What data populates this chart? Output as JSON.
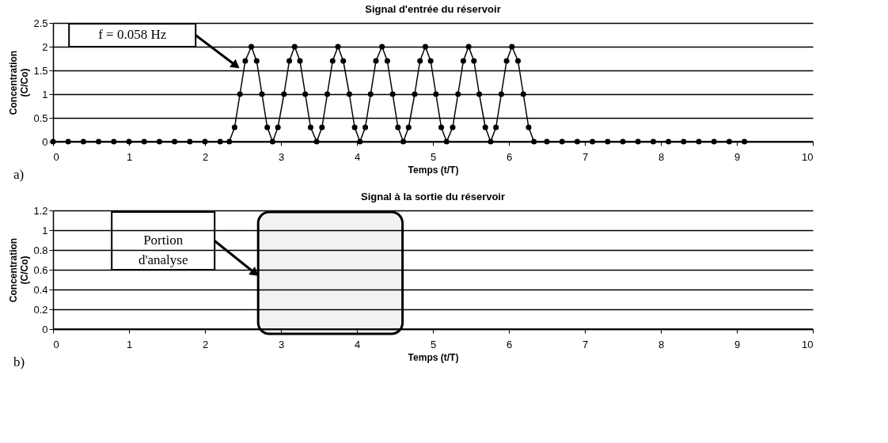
{
  "chart_data": [
    {
      "type": "line",
      "title": "Signal d'entrée du réservoir",
      "xlabel": "Temps (t/T)",
      "ylabel": "Concentration\n(C/Co)",
      "series": [
        {
          "color": "#000000",
          "x": [
            0,
            0.2,
            0.4,
            0.6,
            0.8,
            1.0,
            1.2,
            1.4,
            1.6,
            1.8,
            2.0,
            2.2,
            2.32,
            2.39,
            2.46,
            2.53,
            2.61,
            2.68,
            2.75,
            2.82,
            2.89,
            2.96,
            3.04,
            3.11,
            3.18,
            3.25,
            3.32,
            3.39,
            3.47,
            3.54,
            3.61,
            3.68,
            3.75,
            3.82,
            3.9,
            3.97,
            4.04,
            4.11,
            4.18,
            4.25,
            4.33,
            4.4,
            4.47,
            4.54,
            4.61,
            4.68,
            4.76,
            4.83,
            4.9,
            4.97,
            5.04,
            5.11,
            5.18,
            5.26,
            5.33,
            5.4,
            5.47,
            5.54,
            5.61,
            5.69,
            5.76,
            5.83,
            5.9,
            5.97,
            6.04,
            6.12,
            6.19,
            6.26,
            6.33,
            6.5,
            6.7,
            6.9,
            7.1,
            7.3,
            7.5,
            7.7,
            7.9,
            8.1,
            8.3,
            8.5,
            8.7,
            8.9,
            9.1
          ],
          "values": [
            0,
            0,
            0,
            0,
            0,
            0,
            0,
            0,
            0,
            0,
            0,
            0,
            0,
            0.3,
            1,
            1.7,
            2,
            1.7,
            1,
            0.3,
            0,
            0.3,
            1,
            1.7,
            2,
            1.7,
            1,
            0.3,
            0,
            0.3,
            1,
            1.7,
            2,
            1.7,
            1,
            0.3,
            0,
            0.3,
            1,
            1.7,
            2,
            1.7,
            1,
            0.3,
            0,
            0.3,
            1,
            1.7,
            2,
            1.7,
            1,
            0.3,
            0,
            0.3,
            1,
            1.7,
            2,
            1.7,
            1,
            0.3,
            0,
            0.3,
            1,
            1.7,
            2,
            1.7,
            1,
            0.3,
            0,
            0,
            0,
            0,
            0,
            0,
            0,
            0,
            0,
            0,
            0,
            0,
            0,
            0,
            0
          ]
        }
      ],
      "xlim": [
        0,
        10
      ],
      "xticks": [
        0,
        1,
        2,
        3,
        4,
        5,
        6,
        7,
        8,
        9,
        10
      ],
      "ylim": [
        0,
        2.5
      ],
      "yticks": [
        0,
        0.5,
        1,
        1.5,
        2,
        2.5
      ],
      "grid": "y",
      "marker": "circle",
      "line_style": "solid",
      "annotations": [
        "f = 0.058 Hz",
        "a)"
      ]
    },
    {
      "type": "line",
      "title": "Signal à la sortie du réservoir",
      "xlabel": "Temps (t/T)",
      "ylabel": "Concentration\n(C/Co)",
      "xlim": [
        0,
        10
      ],
      "xticks": [
        0,
        1,
        2,
        3,
        4,
        5,
        6,
        7,
        8,
        9,
        10
      ],
      "ylim": [
        0,
        1.2
      ],
      "yticks": [
        0,
        0.2,
        0.4,
        0.6,
        0.8,
        1,
        1.2
      ],
      "grid": "y",
      "bands": [
        {
          "axis": "x",
          "from": 2.7,
          "to": 4.6,
          "label": "Portion\nd'analyse",
          "color": "#000000"
        }
      ],
      "annotations": [
        "b)"
      ]
    }
  ]
}
